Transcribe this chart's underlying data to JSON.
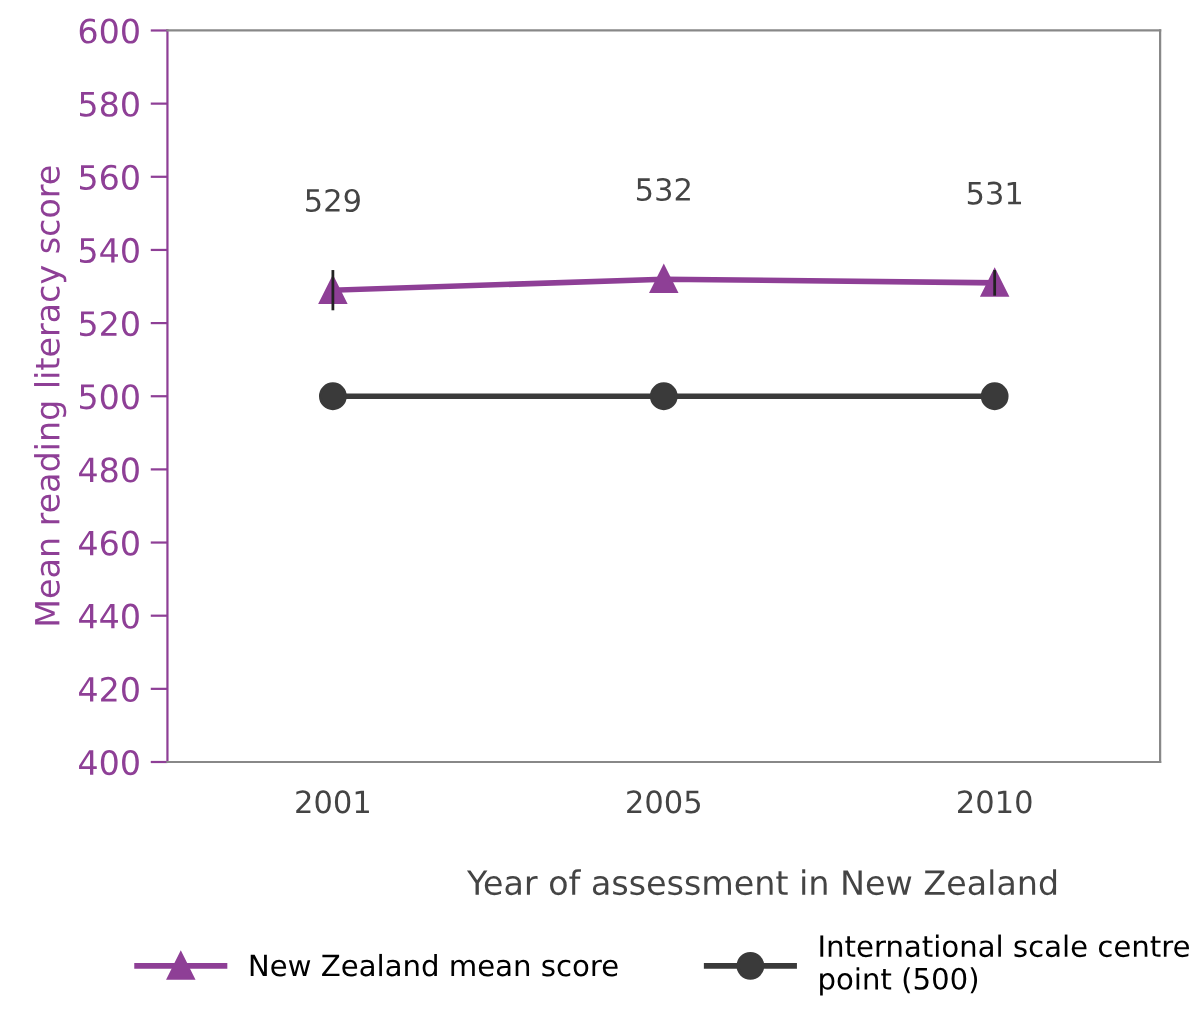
{
  "chart_data": {
    "type": "line",
    "xlabel": "Year of assessment in New Zealand",
    "ylabel": "Mean reading literacy score",
    "categories": [
      "2001",
      "2005",
      "2010"
    ],
    "series": [
      {
        "name": "New Zealand mean score",
        "color": "#8e3f96",
        "values": [
          529,
          532,
          531
        ],
        "marker": "triangle",
        "value_labels": [
          "529",
          "532",
          "531"
        ],
        "errors": [
          5.5,
          null,
          3.5
        ]
      },
      {
        "name": "International scale centre\npoint (500)",
        "color": "#3a3a3a",
        "values": [
          500,
          500,
          500
        ],
        "marker": "circle"
      }
    ],
    "ylim": [
      400,
      600
    ],
    "yticks": [
      400,
      420,
      440,
      460,
      480,
      500,
      520,
      540,
      560,
      580,
      600
    ],
    "grid": false,
    "legend": "bottom",
    "line_style": "solid"
  }
}
